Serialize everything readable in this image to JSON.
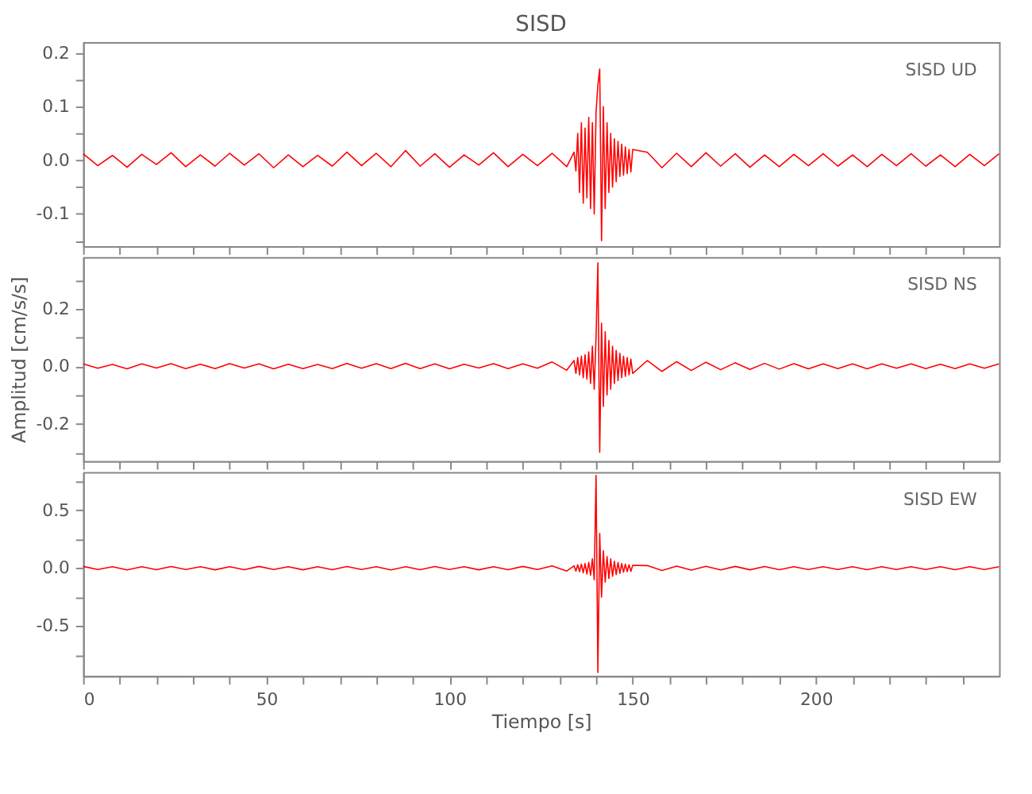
{
  "chart_data": [
    {
      "type": "line",
      "title": "SISD",
      "annotations": [
        "SISD  UD"
      ],
      "tick_labels": "y",
      "xlim": [
        0,
        250
      ],
      "ylim": [
        -0.16,
        0.22
      ],
      "xticks": [
        {
          "value": 0,
          "label": null
        },
        {
          "value": 10,
          "label": null
        },
        {
          "value": 20,
          "label": null
        },
        {
          "value": 30,
          "label": null
        },
        {
          "value": 40,
          "label": null
        },
        {
          "value": 50,
          "label": null
        },
        {
          "value": 60,
          "label": null
        },
        {
          "value": 70,
          "label": null
        },
        {
          "value": 80,
          "label": null
        },
        {
          "value": 90,
          "label": null
        },
        {
          "value": 100,
          "label": null
        },
        {
          "value": 110,
          "label": null
        },
        {
          "value": 120,
          "label": null
        },
        {
          "value": 130,
          "label": null
        },
        {
          "value": 140,
          "label": null
        },
        {
          "value": 150,
          "label": null
        },
        {
          "value": 160,
          "label": null
        },
        {
          "value": 170,
          "label": null
        },
        {
          "value": 180,
          "label": null
        },
        {
          "value": 190,
          "label": null
        },
        {
          "value": 200,
          "label": null
        },
        {
          "value": 210,
          "label": null
        },
        {
          "value": 220,
          "label": null
        },
        {
          "value": 230,
          "label": null
        },
        {
          "value": 240,
          "label": null
        }
      ],
      "yticks": [
        {
          "value": -0.15,
          "label": null
        },
        {
          "value": -0.1,
          "label": "-0.1"
        },
        {
          "value": -0.05,
          "label": null
        },
        {
          "value": 0,
          "label": "0.0"
        },
        {
          "value": 0.05,
          "label": null
        },
        {
          "value": 0.1,
          "label": "0.1"
        },
        {
          "value": 0.15,
          "label": null
        },
        {
          "value": 0.2,
          "label": "0.2"
        }
      ],
      "x": [
        0,
        4,
        8,
        12,
        16,
        20,
        24,
        28,
        32,
        36,
        40,
        44,
        48,
        52,
        56,
        60,
        64,
        68,
        72,
        76,
        80,
        84,
        88,
        92,
        96,
        100,
        104,
        108,
        112,
        116,
        120,
        124,
        128,
        132,
        134,
        134.5,
        135,
        135.5,
        136,
        136.5,
        137,
        137.5,
        138,
        138.5,
        139,
        139.5,
        140,
        140.5,
        141,
        141.5,
        142,
        142.5,
        143,
        143.5,
        144,
        144.5,
        145,
        145.5,
        146,
        146.5,
        147,
        147.5,
        148,
        148.5,
        149,
        149.5,
        150,
        154,
        158,
        162,
        166,
        170,
        174,
        178,
        182,
        186,
        190,
        194,
        198,
        202,
        206,
        210,
        214,
        218,
        222,
        226,
        230,
        234,
        238,
        242,
        246,
        250
      ],
      "series": [
        {
          "color": "#ff0000",
          "values": [
            0.012,
            -0.01,
            0.009,
            -0.013,
            0.011,
            -0.008,
            0.014,
            -0.012,
            0.01,
            -0.011,
            0.013,
            -0.009,
            0.012,
            -0.014,
            0.01,
            -0.012,
            0.009,
            -0.011,
            0.015,
            -0.01,
            0.013,
            -0.012,
            0.018,
            -0.011,
            0.012,
            -0.013,
            0.01,
            -0.009,
            0.014,
            -0.012,
            0.011,
            -0.01,
            0.013,
            -0.012,
            0.015,
            -0.02,
            0.05,
            -0.06,
            0.07,
            -0.08,
            0.06,
            -0.07,
            0.08,
            -0.09,
            0.07,
            -0.1,
            0.09,
            0.14,
            0.17,
            -0.15,
            0.1,
            -0.09,
            0.07,
            -0.06,
            0.05,
            -0.05,
            0.04,
            -0.04,
            0.035,
            -0.03,
            0.03,
            -0.028,
            0.025,
            -0.025,
            0.02,
            -0.022,
            0.02,
            0.015,
            -0.014,
            0.013,
            -0.012,
            0.014,
            -0.011,
            0.012,
            -0.013,
            0.01,
            -0.012,
            0.011,
            -0.01,
            0.012,
            -0.011,
            0.01,
            -0.012,
            0.011,
            -0.01,
            0.012,
            -0.011,
            0.01,
            -0.012,
            0.011,
            -0.01,
            0.012
          ]
        }
      ]
    },
    {
      "type": "line",
      "ylabel": "Amplitud  [cm/s/s]",
      "annotations": [
        "SISD  NS"
      ],
      "tick_labels": "y",
      "xlim": [
        0,
        250
      ],
      "ylim": [
        -0.33,
        0.38
      ],
      "xticks": [
        {
          "value": 0,
          "label": null
        },
        {
          "value": 10,
          "label": null
        },
        {
          "value": 20,
          "label": null
        },
        {
          "value": 30,
          "label": null
        },
        {
          "value": 40,
          "label": null
        },
        {
          "value": 50,
          "label": null
        },
        {
          "value": 60,
          "label": null
        },
        {
          "value": 70,
          "label": null
        },
        {
          "value": 80,
          "label": null
        },
        {
          "value": 90,
          "label": null
        },
        {
          "value": 100,
          "label": null
        },
        {
          "value": 110,
          "label": null
        },
        {
          "value": 120,
          "label": null
        },
        {
          "value": 130,
          "label": null
        },
        {
          "value": 140,
          "label": null
        },
        {
          "value": 150,
          "label": null
        },
        {
          "value": 160,
          "label": null
        },
        {
          "value": 170,
          "label": null
        },
        {
          "value": 180,
          "label": null
        },
        {
          "value": 190,
          "label": null
        },
        {
          "value": 200,
          "label": null
        },
        {
          "value": 210,
          "label": null
        },
        {
          "value": 220,
          "label": null
        },
        {
          "value": 230,
          "label": null
        },
        {
          "value": 240,
          "label": null
        }
      ],
      "yticks": [
        {
          "value": -0.3,
          "label": null
        },
        {
          "value": -0.2,
          "label": "-0.2"
        },
        {
          "value": -0.1,
          "label": null
        },
        {
          "value": 0,
          "label": "0.0"
        },
        {
          "value": 0.1,
          "label": null
        },
        {
          "value": 0.2,
          "label": "0.2"
        },
        {
          "value": 0.3,
          "label": null
        }
      ],
      "x": [
        0,
        4,
        8,
        12,
        16,
        20,
        24,
        28,
        32,
        36,
        40,
        44,
        48,
        52,
        56,
        60,
        64,
        68,
        72,
        76,
        80,
        84,
        88,
        92,
        96,
        100,
        104,
        108,
        112,
        116,
        120,
        124,
        128,
        132,
        134,
        134.5,
        135,
        135.5,
        136,
        136.5,
        137,
        137.5,
        138,
        138.5,
        139,
        139.5,
        140,
        140.5,
        141,
        141.5,
        142,
        142.5,
        143,
        143.5,
        144,
        144.5,
        145,
        145.5,
        146,
        146.5,
        147,
        147.5,
        148,
        148.5,
        149,
        149.5,
        150,
        154,
        158,
        162,
        166,
        170,
        174,
        178,
        182,
        186,
        190,
        194,
        198,
        202,
        206,
        210,
        214,
        218,
        222,
        226,
        230,
        234,
        238,
        242,
        246,
        250
      ],
      "series": [
        {
          "color": "#ff0000",
          "values": [
            0.008,
            -0.007,
            0.006,
            -0.009,
            0.008,
            -0.006,
            0.009,
            -0.008,
            0.007,
            -0.008,
            0.009,
            -0.006,
            0.008,
            -0.009,
            0.007,
            -0.008,
            0.006,
            -0.008,
            0.01,
            -0.007,
            0.009,
            -0.008,
            0.01,
            -0.008,
            0.008,
            -0.009,
            0.007,
            -0.006,
            0.009,
            -0.008,
            0.008,
            -0.007,
            0.015,
            -0.014,
            0.02,
            -0.025,
            0.03,
            -0.03,
            0.035,
            -0.04,
            0.04,
            -0.045,
            0.05,
            -0.06,
            0.07,
            -0.08,
            0.1,
            0.36,
            -0.3,
            0.15,
            -0.14,
            0.12,
            -0.1,
            0.09,
            -0.08,
            0.07,
            -0.06,
            0.055,
            -0.05,
            0.045,
            -0.04,
            0.035,
            -0.035,
            0.03,
            -0.03,
            0.025,
            -0.025,
            0.02,
            -0.018,
            0.016,
            -0.015,
            0.014,
            -0.012,
            0.012,
            -0.011,
            0.01,
            -0.01,
            0.009,
            -0.009,
            0.008,
            -0.008,
            0.008,
            -0.009,
            0.008,
            -0.007,
            0.008,
            -0.008,
            0.007,
            -0.008,
            0.008,
            -0.007,
            0.008
          ]
        }
      ]
    },
    {
      "type": "line",
      "xlabel": "Tiempo  [s]",
      "annotations": [
        "SISD  EW"
      ],
      "xlim": [
        0,
        250
      ],
      "ylim": [
        -0.93,
        0.83
      ],
      "xticks": [
        {
          "value": 0,
          "label": "0"
        },
        {
          "value": 10,
          "label": null
        },
        {
          "value": 20,
          "label": null
        },
        {
          "value": 30,
          "label": null
        },
        {
          "value": 40,
          "label": null
        },
        {
          "value": 50,
          "label": "50"
        },
        {
          "value": 60,
          "label": null
        },
        {
          "value": 70,
          "label": null
        },
        {
          "value": 80,
          "label": null
        },
        {
          "value": 90,
          "label": null
        },
        {
          "value": 100,
          "label": "100"
        },
        {
          "value": 110,
          "label": null
        },
        {
          "value": 120,
          "label": null
        },
        {
          "value": 130,
          "label": null
        },
        {
          "value": 140,
          "label": null
        },
        {
          "value": 150,
          "label": "150"
        },
        {
          "value": 160,
          "label": null
        },
        {
          "value": 170,
          "label": null
        },
        {
          "value": 180,
          "label": null
        },
        {
          "value": 190,
          "label": null
        },
        {
          "value": 200,
          "label": "200"
        },
        {
          "value": 210,
          "label": null
        },
        {
          "value": 220,
          "label": null
        },
        {
          "value": 230,
          "label": null
        },
        {
          "value": 240,
          "label": null
        }
      ],
      "yticks": [
        {
          "value": -0.75,
          "label": null
        },
        {
          "value": -0.5,
          "label": "-0.5"
        },
        {
          "value": -0.25,
          "label": null
        },
        {
          "value": 0,
          "label": "0.0"
        },
        {
          "value": 0.25,
          "label": null
        },
        {
          "value": 0.5,
          "label": "0.5"
        },
        {
          "value": 0.75,
          "label": null
        }
      ],
      "x": [
        0,
        4,
        8,
        12,
        16,
        20,
        24,
        28,
        32,
        36,
        40,
        44,
        48,
        52,
        56,
        60,
        64,
        68,
        72,
        76,
        80,
        84,
        88,
        92,
        96,
        100,
        104,
        108,
        112,
        116,
        120,
        124,
        128,
        132,
        134,
        134.5,
        135,
        135.5,
        136,
        136.5,
        137,
        137.5,
        138,
        138.5,
        139,
        139.5,
        140,
        140.5,
        141,
        141.5,
        142,
        142.5,
        143,
        143.5,
        144,
        144.5,
        145,
        145.5,
        146,
        146.5,
        147,
        147.5,
        148,
        148.5,
        149,
        149.5,
        150,
        154,
        158,
        162,
        166,
        170,
        174,
        178,
        182,
        186,
        190,
        194,
        198,
        202,
        206,
        210,
        214,
        218,
        222,
        226,
        230,
        234,
        238,
        242,
        246,
        250
      ],
      "series": [
        {
          "color": "#ff0000",
          "values": [
            0.015,
            -0.012,
            0.013,
            -0.015,
            0.012,
            -0.013,
            0.014,
            -0.012,
            0.013,
            -0.014,
            0.012,
            -0.013,
            0.015,
            -0.012,
            0.013,
            -0.014,
            0.012,
            -0.013,
            0.014,
            -0.012,
            0.013,
            -0.015,
            0.012,
            -0.013,
            0.014,
            -0.012,
            0.013,
            -0.014,
            0.012,
            -0.013,
            0.015,
            -0.012,
            0.02,
            -0.025,
            0.02,
            -0.025,
            0.03,
            -0.03,
            0.035,
            -0.04,
            0.04,
            -0.05,
            0.05,
            -0.06,
            0.08,
            -0.1,
            0.8,
            -0.9,
            0.3,
            -0.25,
            0.15,
            -0.12,
            0.1,
            -0.09,
            0.08,
            -0.07,
            0.06,
            -0.055,
            0.05,
            -0.045,
            0.04,
            -0.035,
            0.035,
            -0.03,
            0.03,
            -0.028,
            0.025,
            0.022,
            -0.02,
            0.018,
            -0.017,
            0.016,
            -0.015,
            0.015,
            -0.014,
            0.014,
            -0.013,
            0.013,
            -0.012,
            0.013,
            -0.012,
            0.012,
            -0.013,
            0.012,
            -0.012,
            0.013,
            -0.012,
            0.012,
            -0.013,
            0.012,
            -0.012,
            0.013
          ]
        }
      ]
    }
  ]
}
